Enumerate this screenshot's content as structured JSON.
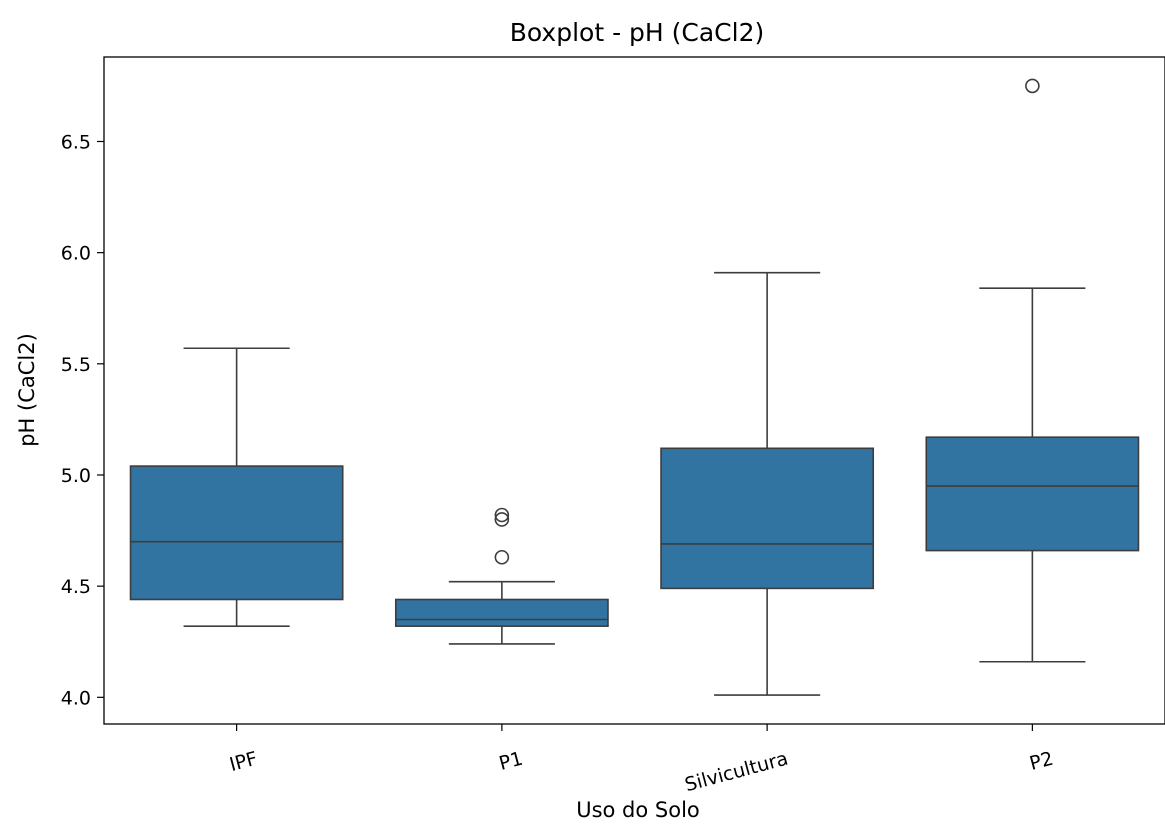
{
  "chart_data": {
    "type": "boxplot",
    "title": "Boxplot - pH (CaCl2)",
    "xlabel": "Uso do Solo",
    "ylabel": "pH (CaCl2)",
    "ylim": [
      3.88,
      6.88
    ],
    "yticks": [
      "4.0",
      "4.5",
      "5.0",
      "5.5",
      "6.0",
      "6.5"
    ],
    "grid": false,
    "box_color": "#3274a1",
    "categories": [
      "IPF",
      "P1",
      "Silvicultura",
      "P2"
    ],
    "boxes": [
      {
        "category": "IPF",
        "whisker_low": 4.32,
        "q1": 4.44,
        "median": 4.7,
        "q3": 5.04,
        "whisker_high": 5.57,
        "outliers": []
      },
      {
        "category": "P1",
        "whisker_low": 4.24,
        "q1": 4.32,
        "median": 4.35,
        "q3": 4.44,
        "whisker_high": 4.52,
        "outliers": [
          4.63,
          4.8,
          4.82
        ]
      },
      {
        "category": "Silvicultura",
        "whisker_low": 4.01,
        "q1": 4.49,
        "median": 4.69,
        "q3": 5.12,
        "whisker_high": 5.91,
        "outliers": []
      },
      {
        "category": "P2",
        "whisker_low": 4.16,
        "q1": 4.66,
        "median": 4.95,
        "q3": 5.17,
        "whisker_high": 5.84,
        "outliers": [
          6.75
        ]
      }
    ]
  }
}
